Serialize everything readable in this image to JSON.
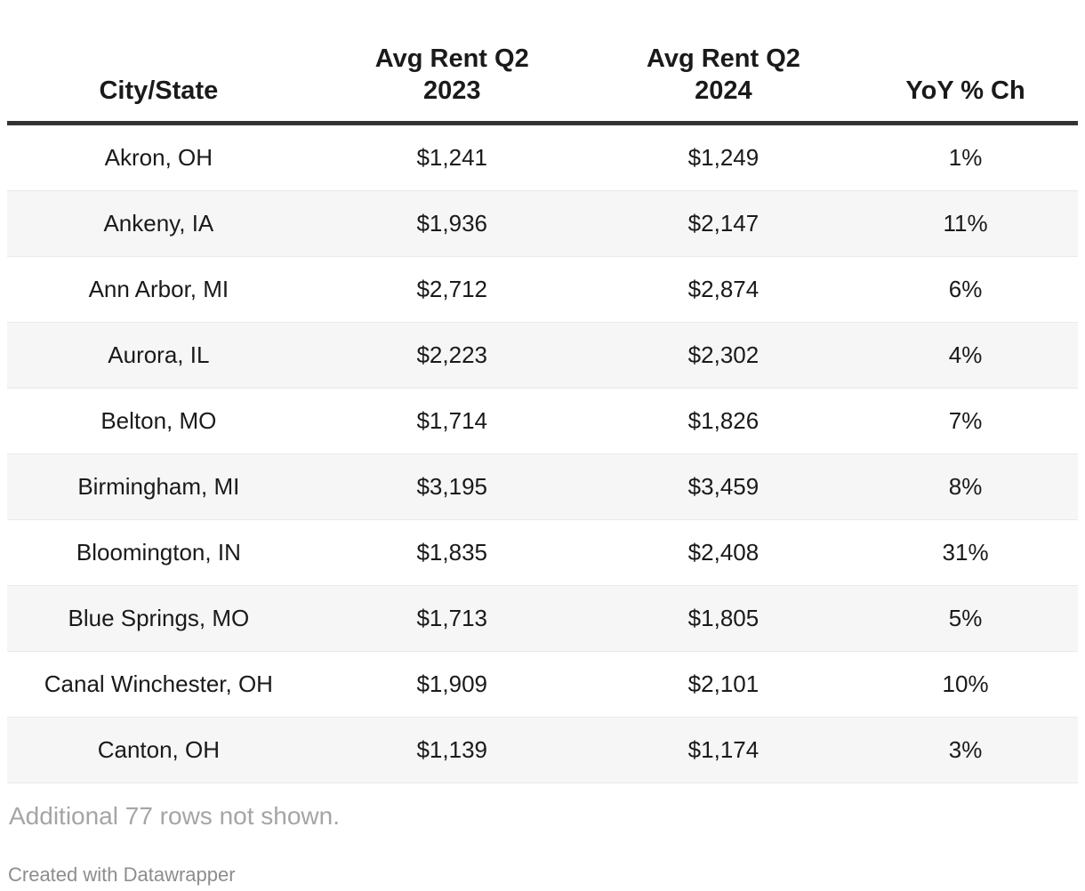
{
  "chart_data": {
    "type": "table",
    "columns": [
      "City/State",
      "Avg Rent Q2 2023",
      "Avg Rent Q2 2024",
      "YoY % Ch"
    ],
    "rows": [
      [
        "Akron, OH",
        "$1,241",
        "$1,249",
        "1%"
      ],
      [
        "Ankeny, IA",
        "$1,936",
        "$2,147",
        "11%"
      ],
      [
        "Ann Arbor, MI",
        "$2,712",
        "$2,874",
        "6%"
      ],
      [
        "Aurora, IL",
        "$2,223",
        "$2,302",
        "4%"
      ],
      [
        "Belton, MO",
        "$1,714",
        "$1,826",
        "7%"
      ],
      [
        "Birmingham, MI",
        "$3,195",
        "$3,459",
        "8%"
      ],
      [
        "Bloomington, IN",
        "$1,835",
        "$2,408",
        "31%"
      ],
      [
        "Blue Springs, MO",
        "$1,713",
        "$1,805",
        "5%"
      ],
      [
        "Canal Winchester, OH",
        "$1,909",
        "$2,101",
        "10%"
      ],
      [
        "Canton, OH",
        "$1,139",
        "$1,174",
        "3%"
      ]
    ],
    "layout": {
      "striped_rows": "even",
      "header_rule": true,
      "cell_alignment": "center"
    }
  },
  "note": "Additional 77 rows not shown.",
  "attribution": "Created with Datawrapper",
  "colors": {
    "header_rule": "#333333",
    "row_stripe": "#f6f6f6",
    "row_border": "#e9e9e9",
    "text": "#1a1a1a",
    "note_text": "#a5a5a5",
    "attribution_text": "#8d8d8d"
  }
}
